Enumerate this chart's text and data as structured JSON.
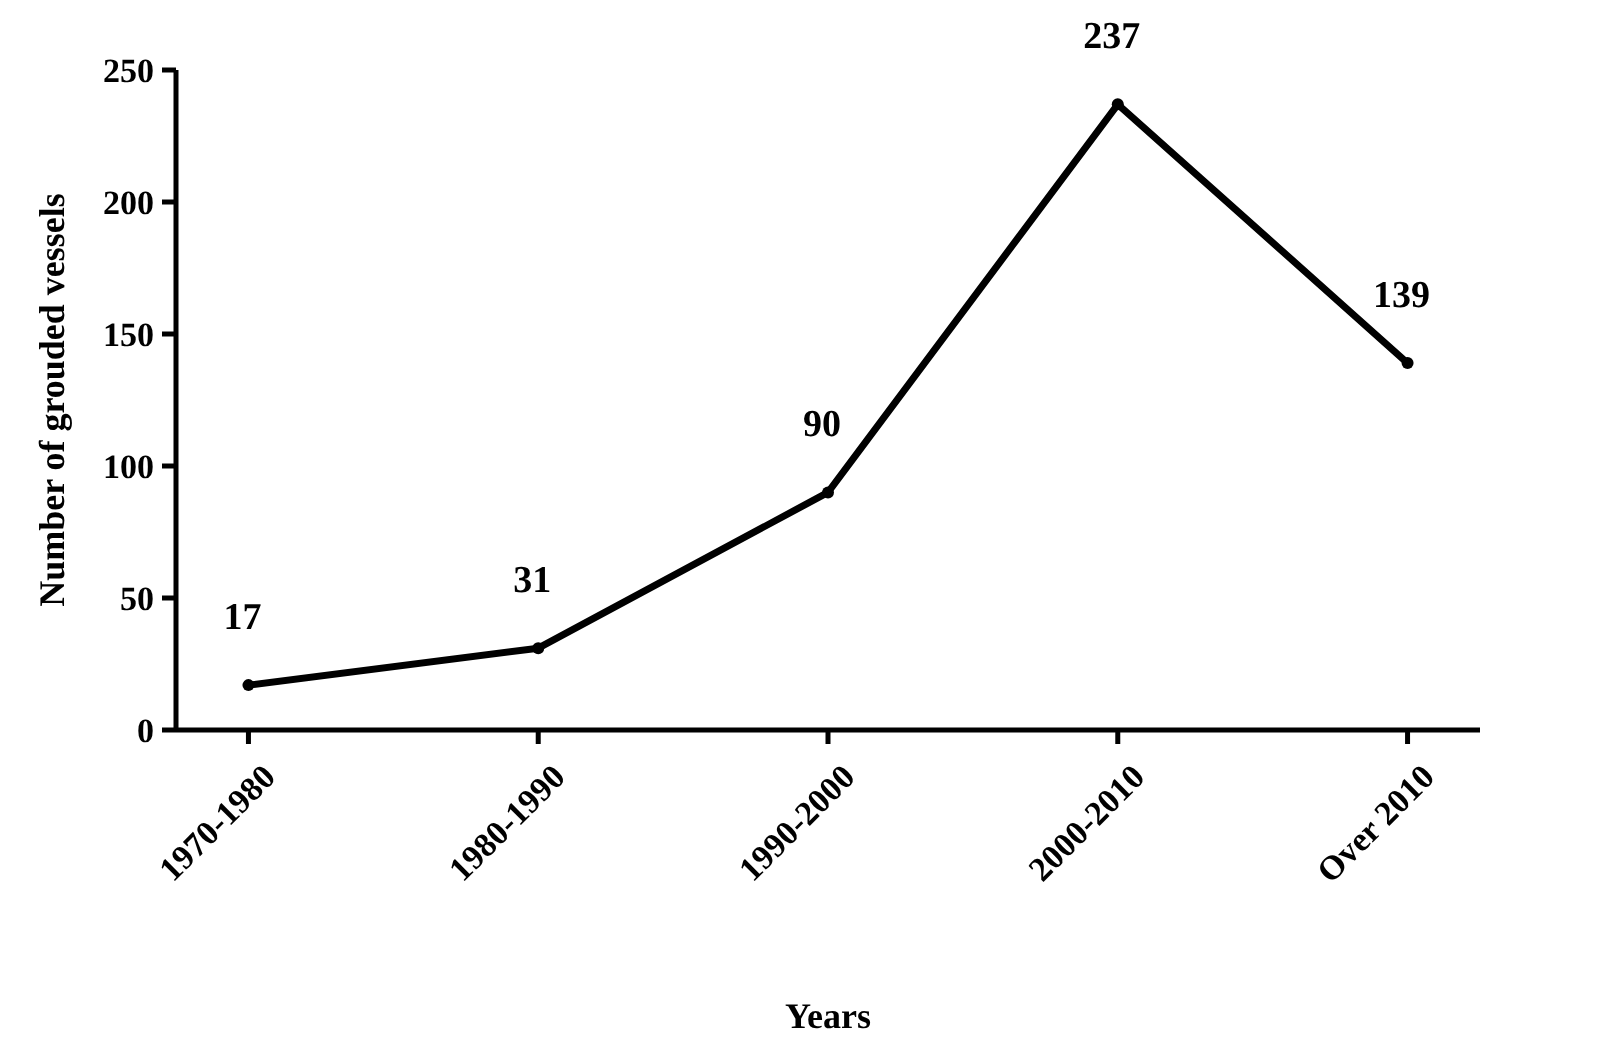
{
  "chart_data": {
    "type": "line",
    "xlabel": "Years",
    "ylabel": "Number of grouded vessels",
    "categories": [
      "1970-1980",
      "1980-1990",
      "1990-2000",
      "2000-2010",
      "Over 2010"
    ],
    "values": [
      17,
      31,
      90,
      237,
      139
    ],
    "color": "#000000",
    "ylim": [
      0,
      250
    ],
    "yticks": [
      0,
      50,
      100,
      150,
      200,
      250
    ],
    "grid": false,
    "marker": "circle",
    "line_style": "solid",
    "data_labels": true
  }
}
